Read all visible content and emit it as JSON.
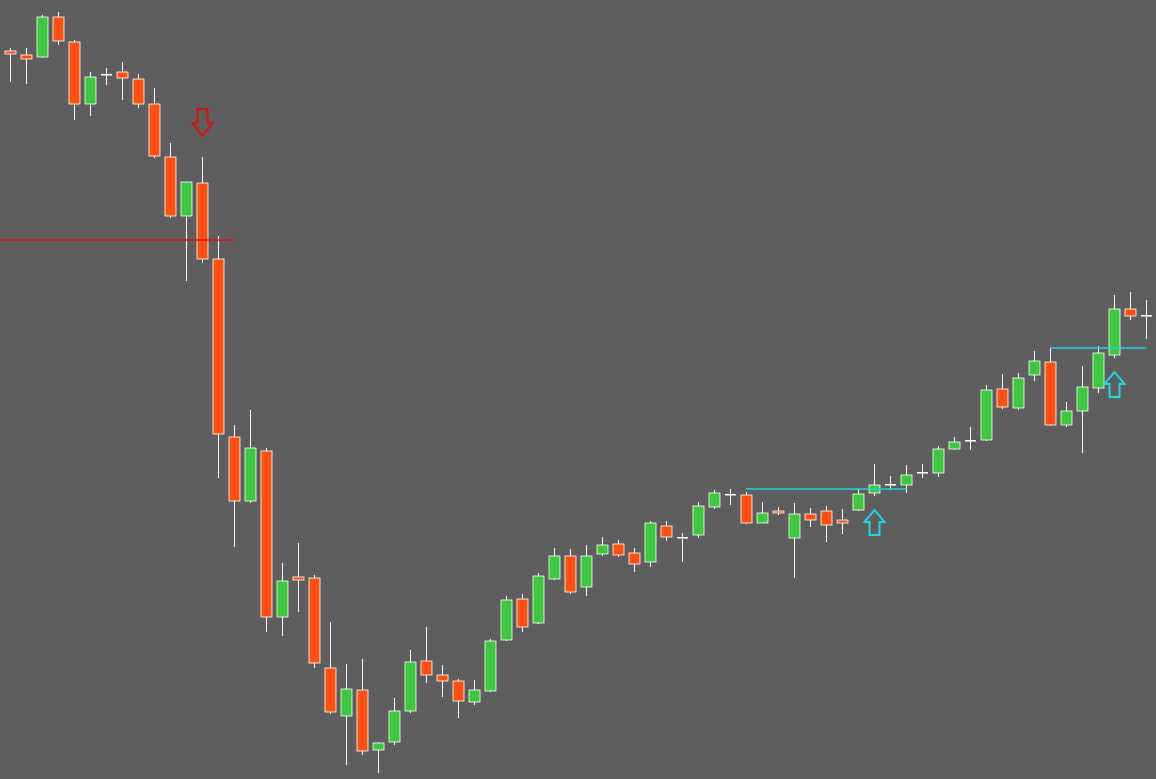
{
  "chart_data": {
    "type": "candlestick",
    "ylim": [
      0,
      779
    ],
    "up_color": "#3dc83d",
    "down_color": "#ff5014",
    "doji_color": "#ffffff",
    "wick_color": "#ffffff",
    "open": [
      728,
      724,
      722,
      762,
      737,
      675,
      705,
      707,
      700,
      675,
      622,
      563,
      596,
      520,
      342,
      278,
      328,
      162,
      202,
      201,
      111,
      63,
      89,
      29,
      37,
      68,
      118,
      104,
      98,
      77,
      88,
      139,
      180,
      156,
      200,
      223,
      192,
      225,
      235,
      226,
      217,
      253,
      242,
      244,
      272,
      285,
      284,
      256,
      268,
      241,
      265,
      268,
      259,
      269,
      286,
      295,
      294,
      307,
      306,
      330,
      339,
      339,
      390,
      371,
      404,
      417,
      354,
      368,
      391,
      424,
      470,
      464
    ],
    "high": [
      731,
      731,
      764,
      767,
      739,
      707,
      711,
      717,
      705,
      691,
      636,
      597,
      622,
      543,
      354,
      369,
      331,
      216,
      236,
      204,
      157,
      115,
      120,
      37,
      81,
      129,
      152,
      114,
      100,
      99,
      140,
      183,
      185,
      206,
      231,
      230,
      234,
      242,
      239,
      231,
      258,
      258,
      246,
      277,
      289,
      290,
      287,
      277,
      272,
      276,
      271,
      273,
      270,
      290,
      315,
      303,
      314,
      315,
      333,
      342,
      352,
      394,
      405,
      406,
      428,
      431,
      377,
      413,
      433,
      484,
      487,
      479
    ],
    "low": [
      697,
      695,
      721,
      734,
      659,
      663,
      694,
      679,
      671,
      621,
      561,
      498,
      516,
      301,
      232,
      276,
      147,
      143,
      167,
      111,
      65,
      14,
      24,
      6,
      34,
      66,
      96,
      82,
      61,
      74,
      87,
      138,
      147,
      155,
      199,
      185,
      183,
      223,
      222,
      207,
      212,
      238,
      217,
      241,
      270,
      274,
      255,
      256,
      264,
      201,
      252,
      237,
      245,
      268,
      283,
      289,
      286,
      301,
      302,
      329,
      329,
      338,
      370,
      369,
      398,
      353,
      352,
      326,
      386,
      421,
      459,
      440
    ],
    "close": [
      725,
      720,
      762,
      738,
      675,
      702,
      705,
      701,
      675,
      623,
      563,
      597,
      520,
      345,
      278,
      331,
      162,
      198,
      199,
      116,
      67,
      90,
      28,
      36,
      68,
      117,
      104,
      98,
      78,
      89,
      138,
      179,
      152,
      203,
      223,
      187,
      223,
      234,
      224,
      215,
      256,
      242,
      242,
      273,
      286,
      285,
      256,
      266,
      266,
      265,
      259,
      254,
      256,
      285,
      294,
      295,
      304,
      307,
      330,
      337,
      339,
      389,
      372,
      401,
      418,
      354,
      368,
      392,
      426,
      470,
      463,
      464
    ],
    "levels": [
      {
        "value": 539,
        "from": 0,
        "to": 14,
        "color": "#e01010"
      },
      {
        "value": 290,
        "from": 46,
        "to": 56,
        "color": "#20d0d8"
      },
      {
        "value": 431,
        "from": 65,
        "to": 71,
        "color": "#20d0d8"
      }
    ],
    "signals": [
      {
        "index": 12,
        "direction": "down",
        "color": "#d81010"
      },
      {
        "index": 54,
        "direction": "up",
        "color": "#20d8e0"
      },
      {
        "index": 69,
        "direction": "up",
        "color": "#20d8e0"
      }
    ]
  }
}
